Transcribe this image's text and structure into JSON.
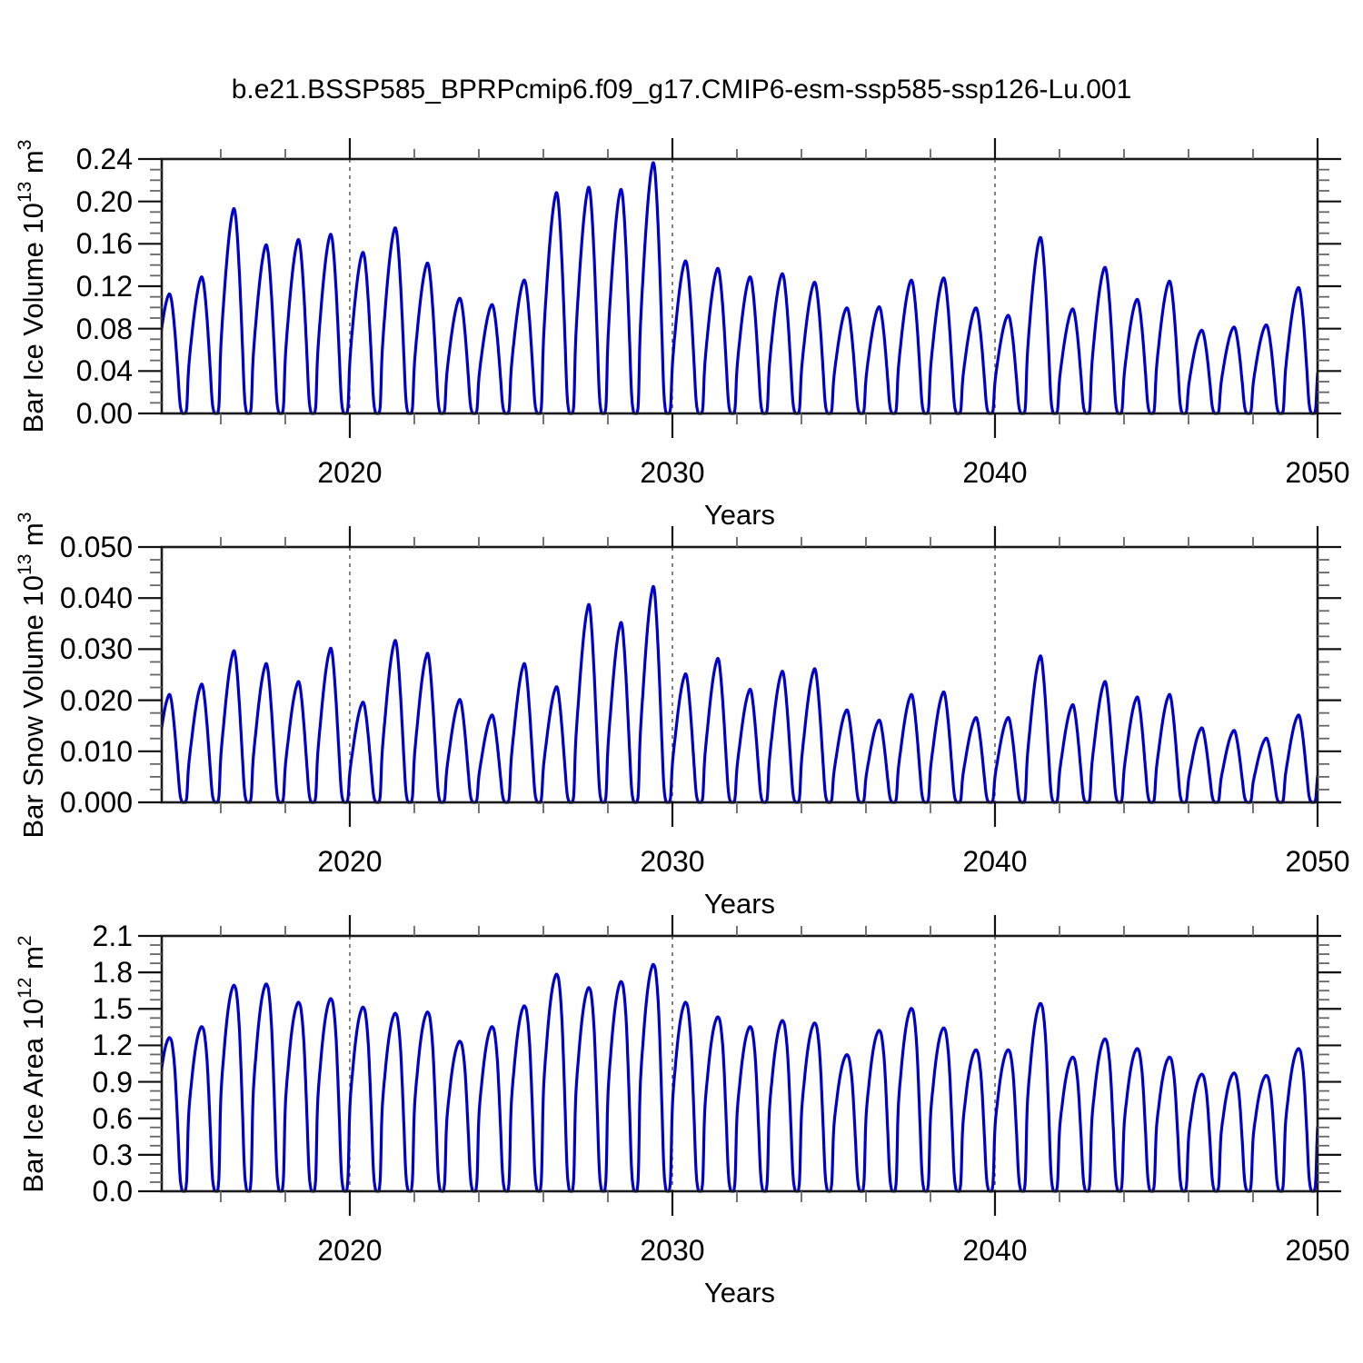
{
  "title": "b.e21.BSSP585_BPRPcmip6.f09_g17.CMIP6-esm-ssp585-ssp126-Lu.001",
  "chart_data": [
    {
      "type": "line",
      "name": "bar-ice-volume",
      "ylabel_rich": [
        [
          "t",
          "Bar Ice Volume 10"
        ],
        [
          "s",
          "13"
        ],
        [
          "t",
          " m"
        ],
        [
          "s",
          "3"
        ]
      ],
      "xlabel": "Years",
      "xlim": [
        2014.17,
        2050
      ],
      "ylim": [
        0,
        0.24
      ],
      "x_major_ticks": [
        2020,
        2030,
        2040,
        2050
      ],
      "x_major_labels": [
        "2020",
        "2030",
        "2040",
        "2050"
      ],
      "x_minor_interval_years": 2,
      "y_major_ticks": [
        0,
        0.04,
        0.08,
        0.12,
        0.16,
        0.2,
        0.24
      ],
      "y_major_labels": [
        "0.00",
        "0.04",
        "0.08",
        "0.12",
        "0.16",
        "0.20",
        "0.24"
      ],
      "y_minor_interval": 0.01,
      "dashed_gridlines_x": [
        2020,
        2030,
        2040
      ],
      "line_color": "#0000cd",
      "grid": "dashed-verticals-only",
      "legend": "none",
      "series": {
        "start_year": 2014,
        "annual_peak_values": [
          0.112,
          0.128,
          0.192,
          0.158,
          0.163,
          0.168,
          0.151,
          0.174,
          0.141,
          0.108,
          0.102,
          0.125,
          0.207,
          0.212,
          0.21,
          0.235,
          0.143,
          0.136,
          0.128,
          0.131,
          0.123,
          0.099,
          0.1,
          0.125,
          0.127,
          0.099,
          0.092,
          0.165,
          0.098,
          0.137,
          0.107,
          0.124,
          0.078,
          0.081,
          0.083,
          0.118
        ],
        "annual_min_value": 0.0
      },
      "annual_cycle_shape": {
        "month_fractions": [
          0.0,
          0.09,
          0.18,
          0.27,
          0.36,
          0.43,
          0.5,
          0.58,
          0.66,
          0.73,
          0.79,
          0.84,
          0.9,
          0.95
        ],
        "amplitude_fractions": [
          0.32,
          0.55,
          0.74,
          0.89,
          0.985,
          1.0,
          0.9,
          0.68,
          0.38,
          0.1,
          0.01,
          0.0,
          0.0,
          0.06
        ]
      }
    },
    {
      "type": "line",
      "name": "bar-snow-volume",
      "ylabel_rich": [
        [
          "t",
          "Bar Snow Volume 10"
        ],
        [
          "s",
          "13"
        ],
        [
          "t",
          " m"
        ],
        [
          "s",
          "3"
        ]
      ],
      "xlabel": "Years",
      "xlim": [
        2014.17,
        2050
      ],
      "ylim": [
        0,
        0.05
      ],
      "x_major_ticks": [
        2020,
        2030,
        2040,
        2050
      ],
      "x_major_labels": [
        "2020",
        "2030",
        "2040",
        "2050"
      ],
      "x_minor_interval_years": 2,
      "y_major_ticks": [
        0,
        0.01,
        0.02,
        0.03,
        0.04,
        0.05
      ],
      "y_major_labels": [
        "0.000",
        "0.010",
        "0.020",
        "0.030",
        "0.040",
        "0.050"
      ],
      "y_minor_interval": 0.0025,
      "dashed_gridlines_x": [
        2020,
        2030,
        2040
      ],
      "line_color": "#0000cd",
      "grid": "dashed-verticals-only",
      "legend": "none",
      "series": {
        "start_year": 2014,
        "annual_peak_values": [
          0.021,
          0.023,
          0.0295,
          0.027,
          0.0235,
          0.03,
          0.0195,
          0.0315,
          0.029,
          0.02,
          0.017,
          0.027,
          0.0225,
          0.0385,
          0.035,
          0.042,
          0.025,
          0.028,
          0.022,
          0.0255,
          0.026,
          0.018,
          0.016,
          0.021,
          0.0215,
          0.0165,
          0.0165,
          0.0285,
          0.019,
          0.0235,
          0.0205,
          0.021,
          0.0145,
          0.014,
          0.0125,
          0.017
        ],
        "annual_min_value": 0.0
      },
      "annual_cycle_shape": {
        "month_fractions": [
          0.0,
          0.09,
          0.18,
          0.27,
          0.36,
          0.43,
          0.5,
          0.58,
          0.66,
          0.73,
          0.79,
          0.84,
          0.9,
          0.95
        ],
        "amplitude_fractions": [
          0.3,
          0.52,
          0.72,
          0.88,
          0.98,
          1.0,
          0.88,
          0.64,
          0.34,
          0.09,
          0.01,
          0.0,
          0.0,
          0.06
        ]
      }
    },
    {
      "type": "line",
      "name": "bar-ice-area",
      "ylabel_rich": [
        [
          "t",
          "Bar Ice Area 10"
        ],
        [
          "s",
          "12"
        ],
        [
          "t",
          " m"
        ],
        [
          "s",
          "2"
        ]
      ],
      "xlabel": "Years",
      "xlim": [
        2014.17,
        2050
      ],
      "ylim": [
        0,
        2.1
      ],
      "x_major_ticks": [
        2020,
        2030,
        2040,
        2050
      ],
      "x_major_labels": [
        "2020",
        "2030",
        "2040",
        "2050"
      ],
      "x_minor_interval_years": 2,
      "y_major_ticks": [
        0,
        0.3,
        0.6,
        0.9,
        1.2,
        1.5,
        1.8,
        2.1
      ],
      "y_major_labels": [
        "0.0",
        "0.3",
        "0.6",
        "0.9",
        "1.2",
        "1.5",
        "1.8",
        "2.1"
      ],
      "y_minor_interval": 0.075,
      "dashed_gridlines_x": [
        2020,
        2030,
        2040
      ],
      "line_color": "#0000cd",
      "grid": "dashed-verticals-only",
      "legend": "none",
      "series": {
        "start_year": 2014,
        "annual_peak_values": [
          1.26,
          1.35,
          1.69,
          1.7,
          1.55,
          1.58,
          1.51,
          1.46,
          1.47,
          1.23,
          1.35,
          1.52,
          1.78,
          1.67,
          1.72,
          1.86,
          1.55,
          1.43,
          1.35,
          1.4,
          1.38,
          1.12,
          1.32,
          1.5,
          1.34,
          1.16,
          1.16,
          1.54,
          1.1,
          1.25,
          1.17,
          1.1,
          0.96,
          0.97,
          0.95,
          1.17
        ],
        "annual_min_value": 0.0
      },
      "annual_cycle_shape": {
        "month_fractions": [
          0.0,
          0.09,
          0.18,
          0.27,
          0.36,
          0.43,
          0.5,
          0.58,
          0.66,
          0.73,
          0.79,
          0.84,
          0.9,
          0.95
        ],
        "amplitude_fractions": [
          0.45,
          0.66,
          0.82,
          0.93,
          0.99,
          1.0,
          0.95,
          0.78,
          0.45,
          0.12,
          0.015,
          0.0,
          0.0,
          0.1
        ]
      }
    }
  ]
}
